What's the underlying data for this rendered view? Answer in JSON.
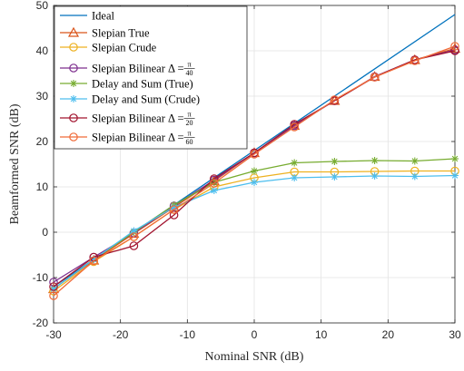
{
  "chart_data": {
    "type": "line",
    "xlabel": "Nominal SNR (dB)",
    "ylabel": "Beamformed SNR (dB)",
    "xlim": [
      -30,
      30
    ],
    "ylim": [
      -20,
      50
    ],
    "xticks": [
      -30,
      -20,
      -10,
      0,
      10,
      20,
      30
    ],
    "yticks": [
      -20,
      -10,
      0,
      10,
      20,
      30,
      40,
      50
    ],
    "grid": true,
    "legend_position": "top-left",
    "x": [
      -30,
      -24,
      -18,
      -12,
      -6,
      0,
      6,
      12,
      18,
      24,
      30
    ],
    "series": [
      {
        "name": "Ideal",
        "legend_main": "Ideal",
        "color": "#0072BD",
        "marker": "none",
        "x": [
          -30,
          30
        ],
        "values": [
          -12,
          48
        ]
      },
      {
        "name": "Slepian True",
        "legend_main": "Slepian True",
        "color": "#D95319",
        "marker": "triangle",
        "values": [
          -12.5,
          -6.2,
          -0.3,
          5.5,
          11.3,
          17.5,
          23.5,
          29.0,
          34.3,
          38.0,
          40.5
        ]
      },
      {
        "name": "Slepian Crude",
        "legend_main": "Slepian Crude",
        "color": "#EDB120",
        "marker": "circle",
        "values": [
          -13.0,
          -6.5,
          -1.0,
          5.0,
          10.0,
          12.0,
          13.3,
          13.3,
          13.4,
          13.5,
          13.5
        ]
      },
      {
        "name": "Slepian Bilinear Δ = π/40",
        "legend_main": "Slepian Bilinear Δ = ",
        "legend_num": "π",
        "legend_den": "40",
        "color": "#7E2F8E",
        "marker": "circle",
        "values": [
          -11.0,
          -5.5,
          -0.2,
          5.8,
          11.5,
          17.5,
          23.5,
          29.0,
          34.3,
          38.0,
          40.2
        ]
      },
      {
        "name": "Delay and Sum (True)",
        "legend_main": "Delay and Sum (True)",
        "color": "#77AC30",
        "marker": "asterisk",
        "values": [
          -12.5,
          -6.0,
          0.0,
          6.0,
          11.0,
          13.5,
          15.3,
          15.6,
          15.8,
          15.7,
          16.2
        ]
      },
      {
        "name": "Delay and Sum (Crude)",
        "legend_main": "Delay and Sum (Crude)",
        "color": "#4DBEEE",
        "marker": "asterisk",
        "values": [
          -12.5,
          -6.0,
          0.3,
          5.5,
          9.2,
          11.0,
          12.0,
          12.2,
          12.4,
          12.3,
          12.5
        ]
      },
      {
        "name": "Slepian Bilinear Δ = π/20",
        "legend_main": "Slepian Bilinear Δ = ",
        "legend_num": "π",
        "legend_den": "20",
        "color": "#A2142F",
        "marker": "circle",
        "values": [
          -12.0,
          -5.5,
          -3.0,
          3.8,
          11.8,
          17.5,
          23.8,
          29.0,
          34.2,
          38.0,
          40.0
        ]
      },
      {
        "name": "Slepian Bilinear Δ = π/60",
        "legend_main": "Slepian Bilinear Δ = ",
        "legend_num": "π",
        "legend_den": "60",
        "color": "#F06A38",
        "marker": "circle",
        "values": [
          -14.0,
          -6.3,
          -1.0,
          5.0,
          10.8,
          17.2,
          23.2,
          29.2,
          34.2,
          37.8,
          41.0
        ]
      }
    ]
  }
}
